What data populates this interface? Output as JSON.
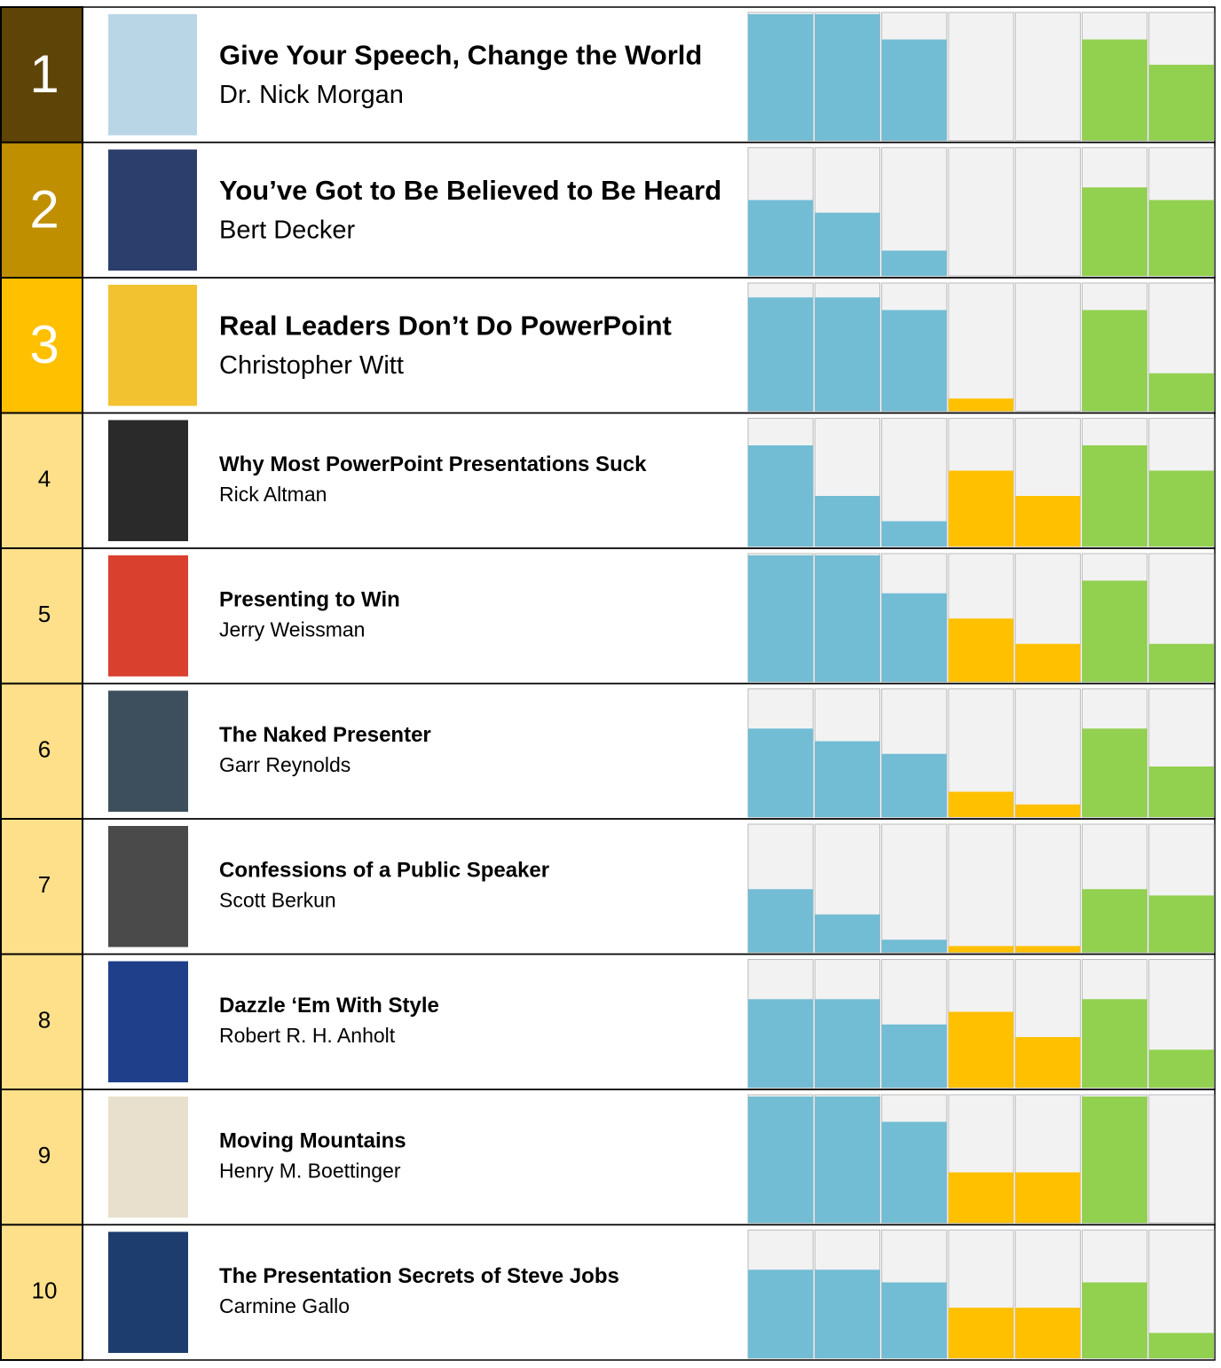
{
  "ylim": [
    0,
    10
  ],
  "colors": [
    "#72bcd4",
    "#72bcd4",
    "#72bcd4",
    "#ffc000",
    "#ffc000",
    "#92d050",
    "#92d050"
  ],
  "rows": [
    {
      "rank": "1",
      "color": "#5e4507",
      "cover": "#b9d6e6",
      "title": "Give Your Speech, Change the World",
      "author": "Dr. Nick Morgan",
      "values": [
        10,
        10,
        8,
        0,
        0,
        8,
        6
      ]
    },
    {
      "rank": "2",
      "color": "#bf8f00",
      "cover": "#2c3e6b",
      "title": "You’ve Got to Be Believed to Be Heard",
      "author": "Bert Decker",
      "values": [
        6,
        5,
        2,
        0,
        0,
        7,
        6
      ]
    },
    {
      "rank": "3",
      "color": "#ffc000",
      "cover": "#f2c230",
      "title": "Real Leaders Don’t Do PowerPoint",
      "author": "Christopher Witt",
      "values": [
        9,
        9,
        8,
        1,
        0,
        8,
        3
      ]
    },
    {
      "rank": "4",
      "color": "#ffe08a",
      "cover": "#2a2a2a",
      "title": "Why Most PowerPoint Presentations Suck",
      "author": "Rick Altman",
      "values": [
        8,
        4,
        2,
        6,
        4,
        8,
        6
      ]
    },
    {
      "rank": "5",
      "color": "#ffe08a",
      "cover": "#d9412e",
      "title": "Presenting to Win",
      "author": "Jerry Weissman",
      "values": [
        10,
        10,
        7,
        5,
        3,
        8,
        3
      ]
    },
    {
      "rank": "6",
      "color": "#ffe08a",
      "cover": "#3d4f5c",
      "title": "The Naked Presenter",
      "author": "Garr Reynolds",
      "values": [
        7,
        6,
        5,
        2,
        1,
        7,
        4
      ]
    },
    {
      "rank": "7",
      "color": "#ffe08a",
      "cover": "#4a4a4a",
      "title": "Confessions of a Public Speaker",
      "author": "Scott Berkun",
      "values": [
        5,
        3,
        1,
        0.5,
        0.5,
        5,
        4.5
      ]
    },
    {
      "rank": "8",
      "color": "#ffe08a",
      "cover": "#1f3f8a",
      "title": "Dazzle ‘Em With Style",
      "author": "Robert R. H. Anholt",
      "values": [
        7,
        7,
        5,
        6,
        4,
        7,
        3
      ]
    },
    {
      "rank": "9",
      "color": "#ffe08a",
      "cover": "#e8e0cc",
      "title": "Moving Mountains",
      "author": "Henry M. Boettinger",
      "values": [
        10,
        10,
        8,
        4,
        4,
        10,
        0
      ]
    },
    {
      "rank": "10",
      "color": "#ffe08a",
      "cover": "#1d3d6e",
      "title": "The Presentation Secrets of Steve Jobs",
      "author": "Carmine Gallo",
      "values": [
        7,
        7,
        6,
        4,
        4,
        6,
        2
      ]
    }
  ]
}
